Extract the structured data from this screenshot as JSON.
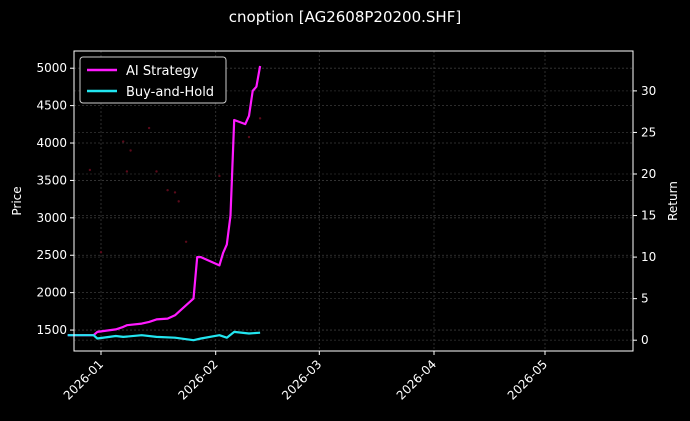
{
  "title": "cnoption [AG2608P20200.SHF]",
  "chart_data": {
    "type": "line",
    "title": "cnoption [AG2608P20200.SHF]",
    "xlabel": "",
    "ylabel": "Price",
    "y2label": "Return",
    "x_ticks": [
      "2026-01",
      "2026-02",
      "2026-03",
      "2026-04",
      "2026-05"
    ],
    "y_ticks": [
      1500,
      2000,
      2500,
      3000,
      3500,
      4000,
      4500,
      5000
    ],
    "y2_ticks": [
      0,
      5,
      10,
      15,
      20,
      25,
      30
    ],
    "ylim": [
      1220,
      5230
    ],
    "y2lim": [
      -1.3,
      34.8
    ],
    "grid": true,
    "legend_position": "upper left",
    "legend": [
      "AI Strategy",
      "Buy-and-Hold"
    ],
    "colors": {
      "ai_strategy": "#ff1aff",
      "buy_and_hold": "#22e5f0",
      "price_points": "#5a0a1a",
      "background": "#000000"
    },
    "series": [
      {
        "name": "AI Strategy",
        "axis": "right",
        "x": [
          "2025-12-23",
          "2025-12-30",
          "2025-12-31",
          "2026-01-05",
          "2026-01-07",
          "2026-01-08",
          "2026-01-12",
          "2026-01-14",
          "2026-01-16",
          "2026-01-19",
          "2026-01-21",
          "2026-01-22",
          "2026-01-23",
          "2026-01-26",
          "2026-01-27",
          "2026-01-28",
          "2026-02-02",
          "2026-02-03",
          "2026-02-04",
          "2026-02-05",
          "2026-02-06",
          "2026-02-09",
          "2026-02-10",
          "2026-02-11",
          "2026-02-12",
          "2026-02-13"
        ],
        "values": [
          0.6,
          0.6,
          1.0,
          1.3,
          1.6,
          1.8,
          2.0,
          2.2,
          2.5,
          2.6,
          3.0,
          3.4,
          3.8,
          5.0,
          10.0,
          10.0,
          9.0,
          10.5,
          11.5,
          15.0,
          26.5,
          26.0,
          27.0,
          30.0,
          30.5,
          33.0
        ]
      },
      {
        "name": "Buy-and-Hold",
        "axis": "right",
        "x": [
          "2025-12-23",
          "2025-12-30",
          "2025-12-31",
          "2026-01-05",
          "2026-01-07",
          "2026-01-12",
          "2026-01-16",
          "2026-01-21",
          "2026-01-26",
          "2026-01-28",
          "2026-02-02",
          "2026-02-04",
          "2026-02-06",
          "2026-02-10",
          "2026-02-13"
        ],
        "values": [
          0.6,
          0.6,
          0.2,
          0.5,
          0.4,
          0.6,
          0.4,
          0.3,
          0.0,
          0.2,
          0.6,
          0.3,
          1.0,
          0.8,
          0.9
        ]
      },
      {
        "name": "Price",
        "axis": "left",
        "type": "scatter",
        "x": [
          "2025-12-29",
          "2026-01-01",
          "2026-01-07",
          "2026-01-08",
          "2026-01-09",
          "2026-01-14",
          "2026-01-16",
          "2026-01-19",
          "2026-01-21",
          "2026-01-22",
          "2026-01-24",
          "2026-02-02",
          "2026-02-10",
          "2026-02-13"
        ],
        "values": [
          3640,
          2540,
          4020,
          3620,
          3900,
          4200,
          3620,
          3370,
          3340,
          3220,
          2680,
          3560,
          4080,
          4330
        ]
      }
    ]
  }
}
